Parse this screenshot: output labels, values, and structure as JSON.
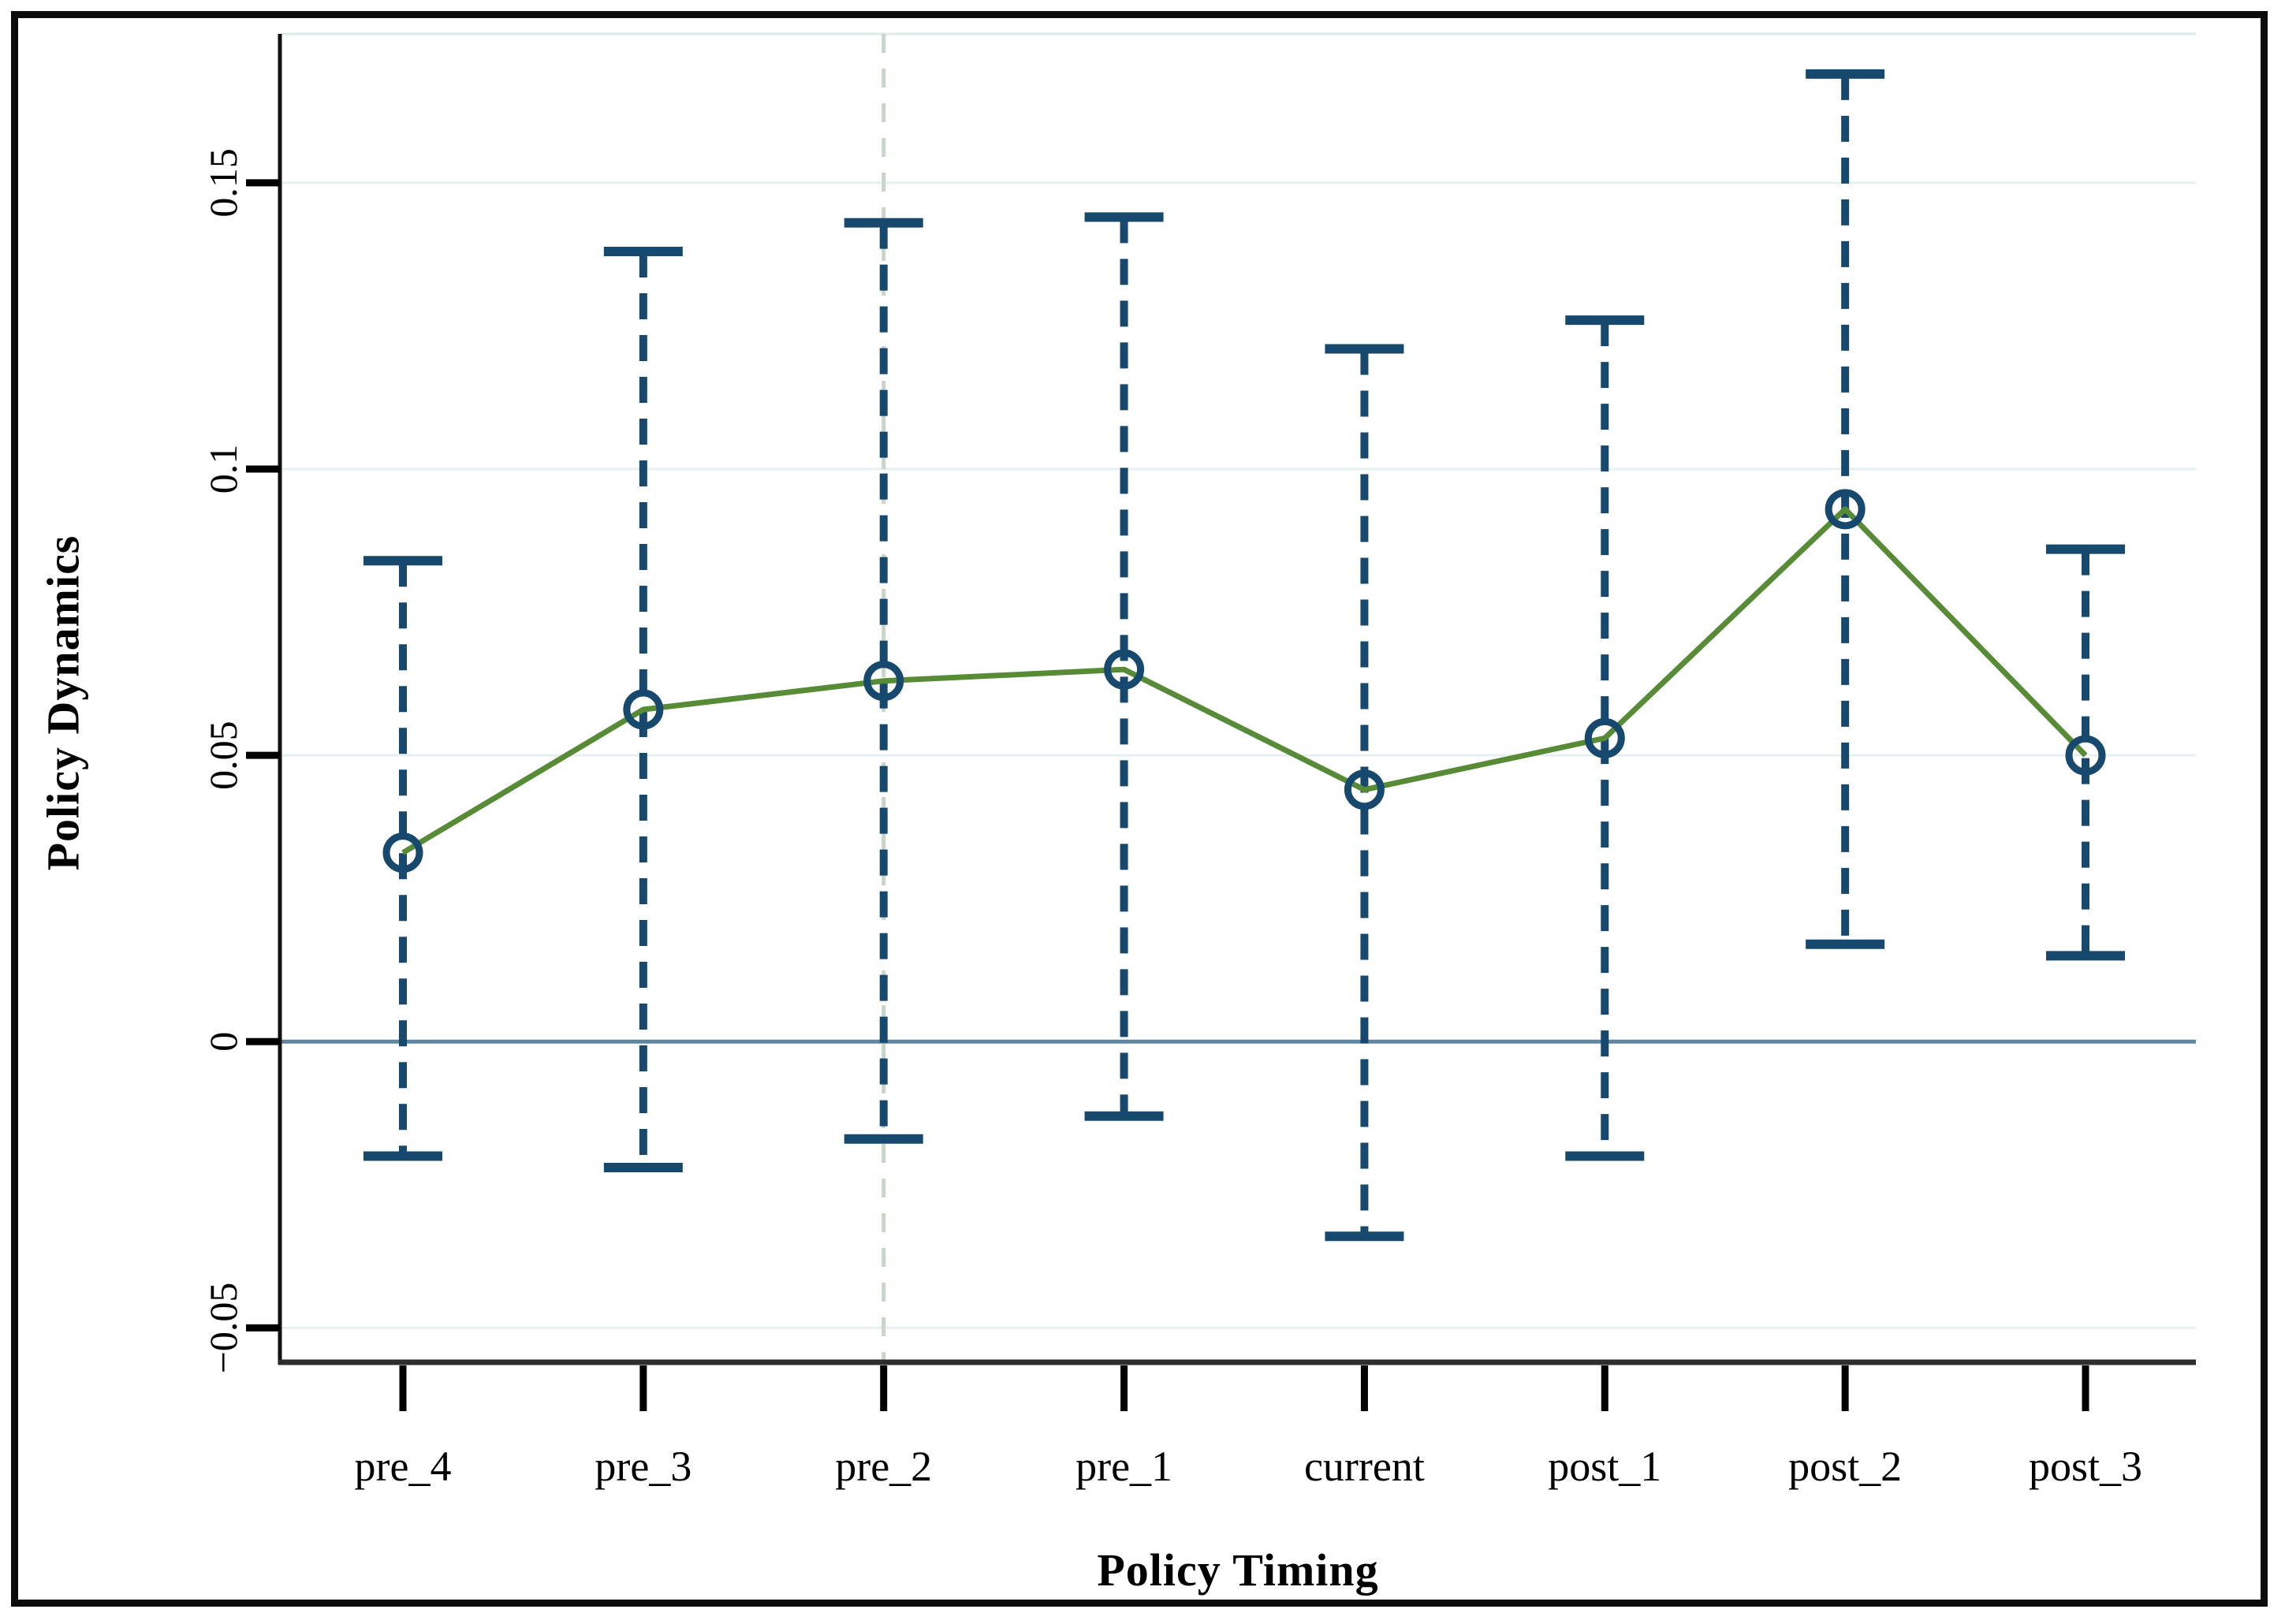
{
  "figure": {
    "background": "#ffffff",
    "border_color": "#0b0b0b"
  },
  "chart_data": {
    "type": "line",
    "subtype": "coefficient-plot-with-confidence-intervals",
    "title": "",
    "xlabel": "Policy Timing",
    "ylabel": "Policy Dynamics",
    "categories": [
      "pre_4",
      "pre_3",
      "pre_2",
      "pre_1",
      "current",
      "post_1",
      "post_2",
      "post_3"
    ],
    "series": [
      {
        "name": "point_estimate",
        "values": [
          0.033,
          0.058,
          0.063,
          0.065,
          0.044,
          0.053,
          0.093,
          0.05
        ]
      },
      {
        "name": "ci_upper",
        "values": [
          0.084,
          0.138,
          0.143,
          0.144,
          0.121,
          0.126,
          0.169,
          0.086
        ]
      },
      {
        "name": "ci_lower",
        "values": [
          -0.02,
          -0.022,
          -0.017,
          -0.013,
          -0.034,
          -0.02,
          0.017,
          0.015
        ]
      }
    ],
    "yticks": [
      -0.05,
      0,
      0.05,
      0.1,
      0.15
    ],
    "ytick_labels": [
      "−0.05",
      "0",
      "0.05",
      "0.1",
      "0.15"
    ],
    "ylim": [
      -0.056,
      0.176
    ],
    "grid": "horizontal",
    "legend": "none",
    "reference_lines": {
      "horizontal_at": 0,
      "vertical_at_category": "pre_2"
    }
  },
  "colors": {
    "marker_and_ci": "#17486e",
    "trend_line": "#578b36",
    "zero_line": "#5f86a0",
    "gridline": "#e7f0f0",
    "vertical_reference": "#c8d6c8",
    "axis_line": "#2d2d2d",
    "tick": "#000000",
    "text": "#000000"
  }
}
